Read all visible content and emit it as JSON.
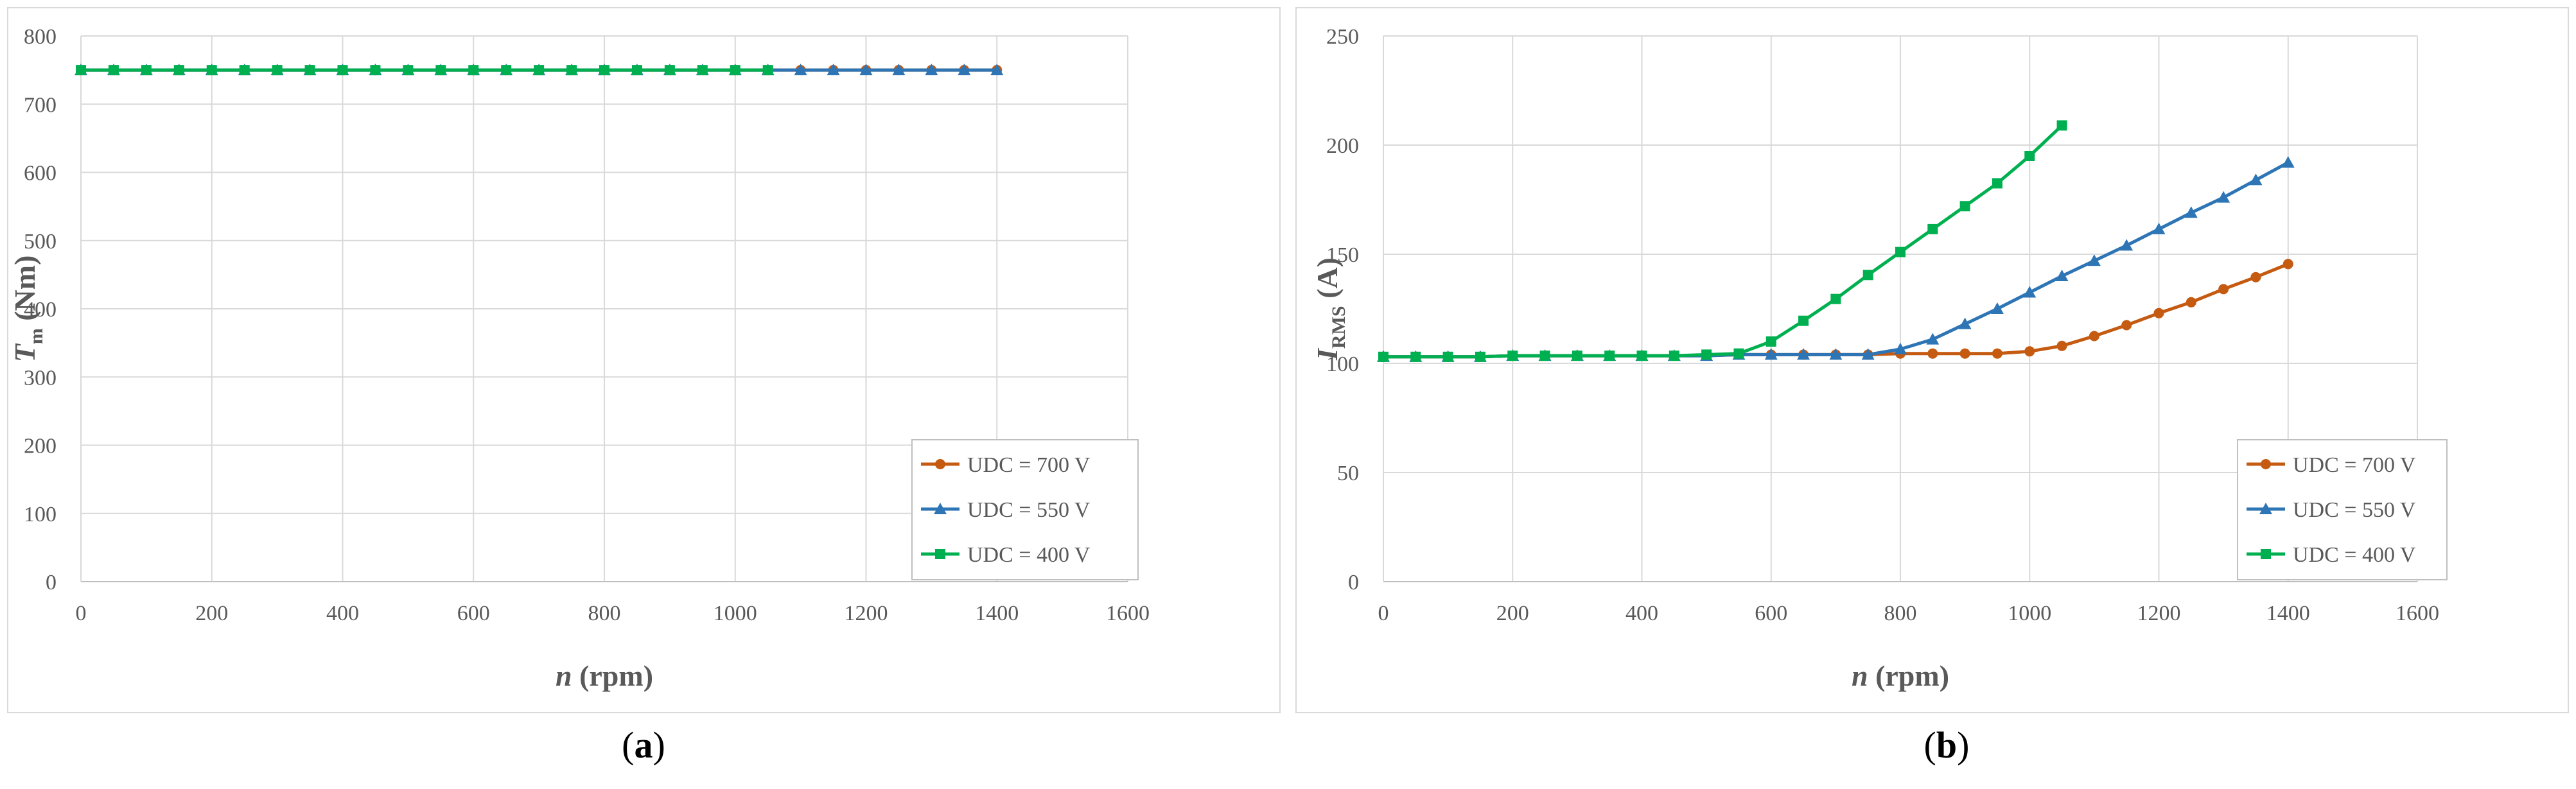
{
  "colors": {
    "udc700": "#C55A11",
    "udc550": "#2E75B6",
    "udc400": "#00B050",
    "grid": "#D9D9D9",
    "axis": "#BFBFBF",
    "tick_text": "#595959",
    "frame": "#D9D9D9"
  },
  "chart_data": [
    {
      "panel_label": "a",
      "type": "line",
      "xlabel_var": "n",
      "xlabel_unit": "(rpm)",
      "ylabel_var": "T",
      "ylabel_sub": "m",
      "ylabel_unit": "(Nm)",
      "xlim": [
        0,
        1600
      ],
      "ylim": [
        0,
        800
      ],
      "x_ticks": [
        0,
        200,
        400,
        600,
        800,
        1000,
        1200,
        1400,
        1600
      ],
      "y_ticks": [
        0,
        100,
        200,
        300,
        400,
        500,
        600,
        700,
        800
      ],
      "grid": true,
      "legend_position": "bottom-right",
      "series": [
        {
          "name": "UDC = 700 V",
          "marker": "circle",
          "color": "#C55A11",
          "x": [
            0,
            50,
            100,
            150,
            200,
            250,
            300,
            350,
            400,
            450,
            500,
            550,
            600,
            650,
            700,
            750,
            800,
            850,
            900,
            950,
            1000,
            1050,
            1100,
            1150,
            1200,
            1250,
            1300,
            1350,
            1400
          ],
          "y": [
            750,
            750,
            750,
            750,
            750,
            750,
            750,
            750,
            750,
            750,
            750,
            750,
            750,
            750,
            750,
            750,
            750,
            750,
            750,
            750,
            750,
            750,
            750,
            750,
            750,
            750,
            750,
            750,
            750
          ]
        },
        {
          "name": "UDC = 550 V",
          "marker": "triangle",
          "color": "#2E75B6",
          "x": [
            0,
            50,
            100,
            150,
            200,
            250,
            300,
            350,
            400,
            450,
            500,
            550,
            600,
            650,
            700,
            750,
            800,
            850,
            900,
            950,
            1000,
            1050,
            1100,
            1150,
            1200,
            1250,
            1300,
            1350,
            1400
          ],
          "y": [
            750,
            750,
            750,
            750,
            750,
            750,
            750,
            750,
            750,
            750,
            750,
            750,
            750,
            750,
            750,
            750,
            750,
            750,
            750,
            750,
            750,
            750,
            750,
            750,
            750,
            750,
            750,
            750,
            750
          ]
        },
        {
          "name": "UDC = 400 V",
          "marker": "square",
          "color": "#00B050",
          "x": [
            0,
            50,
            100,
            150,
            200,
            250,
            300,
            350,
            400,
            450,
            500,
            550,
            600,
            650,
            700,
            750,
            800,
            850,
            900,
            950,
            1000,
            1050
          ],
          "y": [
            750,
            750,
            750,
            750,
            750,
            750,
            750,
            750,
            750,
            750,
            750,
            750,
            750,
            750,
            750,
            750,
            750,
            750,
            750,
            750,
            750,
            750
          ]
        }
      ]
    },
    {
      "panel_label": "b",
      "type": "line",
      "xlabel_var": "n",
      "xlabel_unit": "(rpm)",
      "ylabel_var": "I",
      "ylabel_sub": "RMS",
      "ylabel_unit": "(A)",
      "xlim": [
        0,
        1600
      ],
      "ylim": [
        0,
        250
      ],
      "x_ticks": [
        0,
        200,
        400,
        600,
        800,
        1000,
        1200,
        1400,
        1600
      ],
      "y_ticks": [
        0,
        50,
        100,
        150,
        200,
        250
      ],
      "grid": true,
      "legend_position": "bottom-right",
      "series": [
        {
          "name": "UDC = 700 V",
          "marker": "circle",
          "color": "#C55A11",
          "x": [
            0,
            50,
            100,
            150,
            200,
            250,
            300,
            350,
            400,
            450,
            500,
            550,
            600,
            650,
            700,
            750,
            800,
            850,
            900,
            950,
            1000,
            1050,
            1100,
            1150,
            1200,
            1250,
            1300,
            1350,
            1400
          ],
          "y": [
            103,
            103,
            103,
            103,
            103.5,
            103.5,
            103.5,
            103.5,
            103.5,
            103.5,
            103.5,
            104,
            104,
            104,
            104,
            104,
            104.5,
            104.5,
            104.5,
            104.5,
            105.5,
            108,
            112.5,
            117.5,
            123,
            128,
            134,
            139.5,
            145.5
          ]
        },
        {
          "name": "UDC = 550 V",
          "marker": "triangle",
          "color": "#2E75B6",
          "x": [
            0,
            50,
            100,
            150,
            200,
            250,
            300,
            350,
            400,
            450,
            500,
            550,
            600,
            650,
            700,
            750,
            800,
            850,
            900,
            950,
            1000,
            1050,
            1100,
            1150,
            1200,
            1250,
            1300,
            1350,
            1400
          ],
          "y": [
            103,
            103,
            103,
            103,
            103.5,
            103.5,
            103.5,
            103.5,
            103.5,
            103.5,
            103.5,
            104,
            104,
            104,
            104,
            104,
            106.5,
            111,
            118,
            125,
            132.5,
            140,
            147,
            154,
            161.5,
            169,
            176,
            184,
            192
          ]
        },
        {
          "name": "UDC = 400 V",
          "marker": "square",
          "color": "#00B050",
          "x": [
            0,
            50,
            100,
            150,
            200,
            250,
            300,
            350,
            400,
            450,
            500,
            550,
            600,
            650,
            700,
            750,
            800,
            850,
            900,
            950,
            1000,
            1050
          ],
          "y": [
            103,
            103,
            103,
            103,
            103.5,
            103.5,
            103.5,
            103.5,
            103.5,
            103.5,
            104,
            104.5,
            110,
            119.5,
            129.5,
            140.5,
            151,
            161.5,
            172,
            182.5,
            195,
            209
          ]
        }
      ]
    }
  ]
}
